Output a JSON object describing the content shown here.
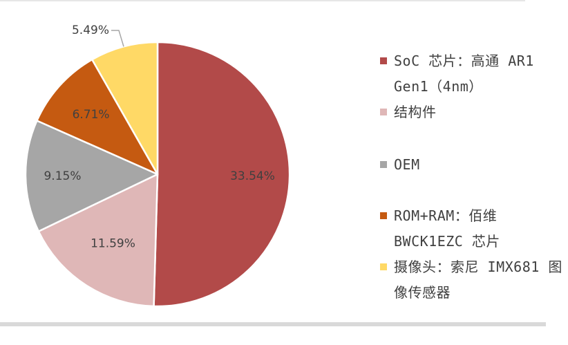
{
  "chart_data": {
    "type": "pie",
    "slices": [
      {
        "label": "SoC 芯片：高通 AR1 Gen1（4nm）",
        "value": 33.54,
        "value_label": "33.54%",
        "color": "#b24a49"
      },
      {
        "label": "结构件",
        "value": 11.59,
        "value_label": "11.59%",
        "color": "#dfb7b7"
      },
      {
        "label": "OEM",
        "value": 9.15,
        "value_label": "9.15%",
        "color": "#a6a6a6"
      },
      {
        "label": "ROM+RAM：佰维 BWCK1EZC 芯片",
        "value": 6.71,
        "value_label": "6.71%",
        "color": "#c55a11"
      },
      {
        "label": "摄像头：索尼 IMX681 图像传感器",
        "value": 5.49,
        "value_label": "5.49%",
        "color": "#ffd966"
      }
    ],
    "legend_position": "right"
  }
}
